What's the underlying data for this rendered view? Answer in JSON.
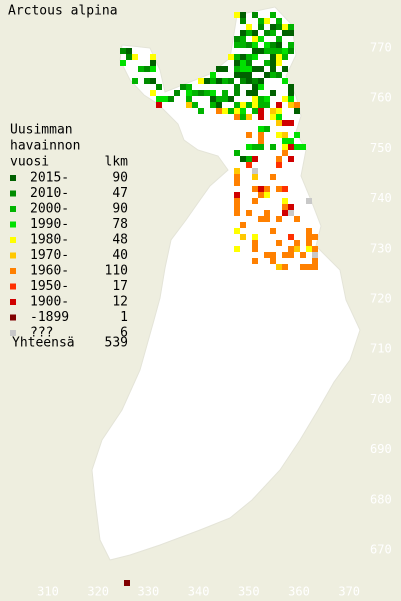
{
  "title": "Arctous alpina",
  "legend": {
    "header": [
      "Uusimman",
      "havainnon",
      "vuosi"
    ],
    "count_header": "lkm",
    "items": [
      {
        "label": "2015-",
        "count": 90,
        "color": "#006000"
      },
      {
        "label": "2010-",
        "count": 47,
        "color": "#008c00"
      },
      {
        "label": "2000-",
        "count": 90,
        "color": "#00b400"
      },
      {
        "label": "1990-",
        "count": 78,
        "color": "#00e000"
      },
      {
        "label": "1980-",
        "count": 48,
        "color": "#ffff00"
      },
      {
        "label": "1970-",
        "count": 40,
        "color": "#ffc800"
      },
      {
        "label": "1960-",
        "count": 110,
        "color": "#ff8000"
      },
      {
        "label": "1950-",
        "count": 17,
        "color": "#ff3000"
      },
      {
        "label": "1900-",
        "count": 12,
        "color": "#d00000"
      },
      {
        "label": "-1899",
        "count": 1,
        "color": "#800000"
      },
      {
        "label": "???",
        "count": 6,
        "color": "#c8c8c8"
      }
    ],
    "total_label": "Yhteensä",
    "total": 539
  },
  "grid_labels": {
    "north": [
      770,
      760,
      750,
      740,
      730,
      720,
      710,
      700,
      690,
      680,
      670
    ],
    "east": [
      310,
      320,
      330,
      340,
      350,
      360,
      370
    ]
  }
}
